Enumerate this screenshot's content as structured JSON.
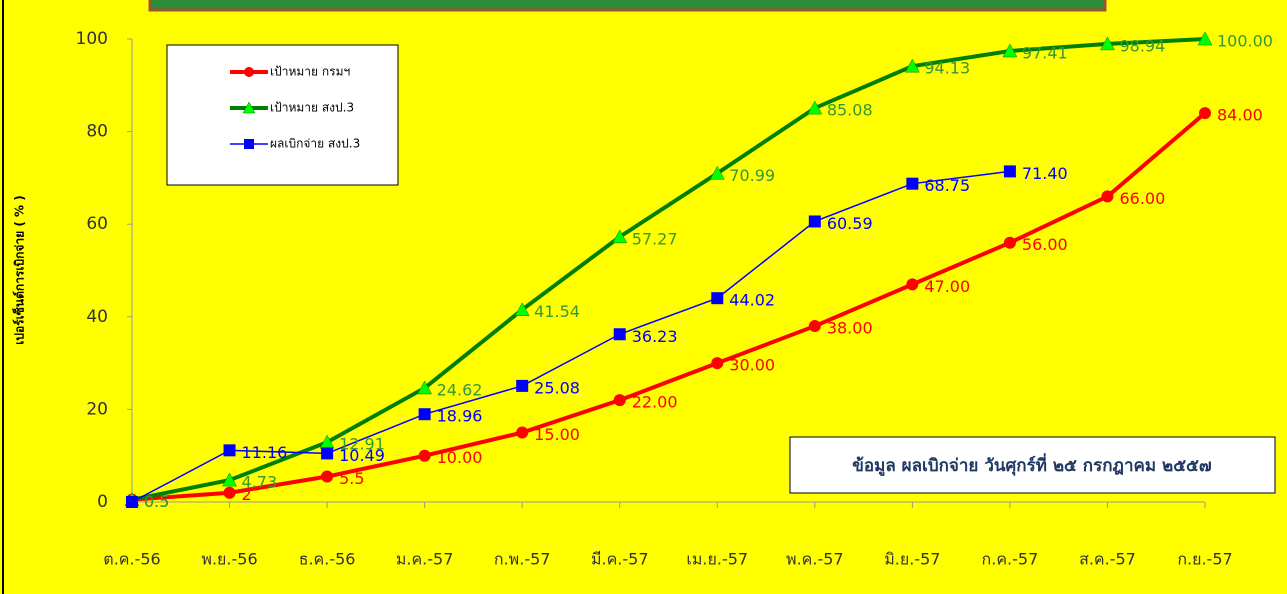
{
  "chart_data": {
    "type": "line",
    "y_label": "เปอร์เซ็นต์การเบิกจ่าย ( % )",
    "annotation": "ข้อมูล ผลเบิกจ่าย วันศุกร์ที่ ๒๕ กรกฎาคม ๒๕๕๗",
    "categories": [
      "ต.ค.-56",
      "พ.ย.-56",
      "ธ.ค.-56",
      "ม.ค.-57",
      "ก.พ.-57",
      "มี.ค.-57",
      "เม.ย.-57",
      "พ.ค.-57",
      "มิ.ย.-57",
      "ก.ค.-57",
      "ส.ค.-57",
      "ก.ย.-57"
    ],
    "series": [
      {
        "name": "เป้าหมาย กรมฯ",
        "color": "#ff0000",
        "marker": "circle",
        "width": 4,
        "values": [
          0.5,
          2,
          5.5,
          10,
          15,
          22,
          30,
          38,
          47,
          56,
          66,
          84
        ],
        "value_labels": [
          "0.5",
          "2",
          "5.5",
          "10.00",
          "15.00",
          "22.00",
          "30.00",
          "38.00",
          "47.00",
          "56.00",
          "66.00",
          "84.00"
        ]
      },
      {
        "name": "เป้าหมาย สงป.3",
        "color": "#008000",
        "marker_color": "#00ff00",
        "label_color": "#339933",
        "marker": "triangle",
        "width": 4,
        "values": [
          0.5,
          4.73,
          12.91,
          24.62,
          41.54,
          57.27,
          70.99,
          85.08,
          94.13,
          97.41,
          98.94,
          100
        ],
        "value_labels": [
          "0.5",
          "4.73",
          "12.91",
          "24.62",
          "41.54",
          "57.27",
          "70.99",
          "85.08",
          "94.13",
          "97.41",
          "98.94",
          "100.00"
        ]
      },
      {
        "name": "ผลเบิกจ่าย สงป.3",
        "color": "#0000ff",
        "marker": "square",
        "width": 1.5,
        "values": [
          0,
          11.16,
          10.49,
          18.96,
          25.08,
          36.23,
          44.02,
          60.59,
          68.75,
          71.4,
          null,
          null
        ],
        "value_labels": [
          null,
          "11.16",
          "10.49",
          "18.96",
          "25.08",
          "36.23",
          "44.02",
          "60.59",
          "68.75",
          "71.40",
          null,
          null
        ]
      }
    ],
    "ylim": [
      0,
      100
    ],
    "yticks": [
      0,
      20,
      40,
      60,
      80,
      100
    ],
    "background": "#ffff00"
  }
}
